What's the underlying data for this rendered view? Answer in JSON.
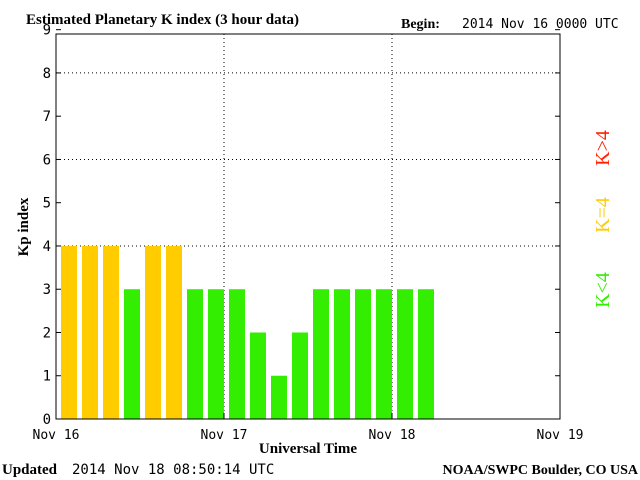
{
  "header": {
    "title": "Estimated Planetary K index (3 hour data)",
    "begin_label": "Begin:",
    "begin_value": "2014 Nov 16 0000 UTC"
  },
  "footer": {
    "updated_label": "Updated",
    "updated_value": "2014 Nov 18 08:50:14 UTC",
    "credit": "NOAA/SWPC Boulder, CO USA"
  },
  "legend": {
    "items": [
      {
        "label": "K<4",
        "color": "#33ee00"
      },
      {
        "label": "K=4",
        "color": "#ffcc00"
      },
      {
        "label": "K>4",
        "color": "#ff2200"
      }
    ]
  },
  "colors": {
    "low": "#33ee00",
    "storm_threshold": "#ffcc00",
    "high": "#ff2200"
  },
  "chart_data": {
    "type": "bar",
    "title": "Estimated Planetary K index (3 hour data)",
    "xlabel": "Universal Time",
    "ylabel": "Kp index",
    "ylim": [
      0,
      9
    ],
    "yticks": [
      0,
      1,
      2,
      3,
      4,
      5,
      6,
      7,
      8,
      9
    ],
    "xticks": [
      "Nov 16",
      "Nov 17",
      "Nov 18",
      "Nov 19"
    ],
    "bars_per_day": 8,
    "grid": true,
    "grid_lines_y": [
      4,
      6,
      8
    ],
    "values": [
      4,
      4,
      4,
      3,
      4,
      4,
      3,
      3,
      3,
      2,
      1,
      2,
      3,
      3,
      3,
      3,
      3,
      3
    ]
  }
}
